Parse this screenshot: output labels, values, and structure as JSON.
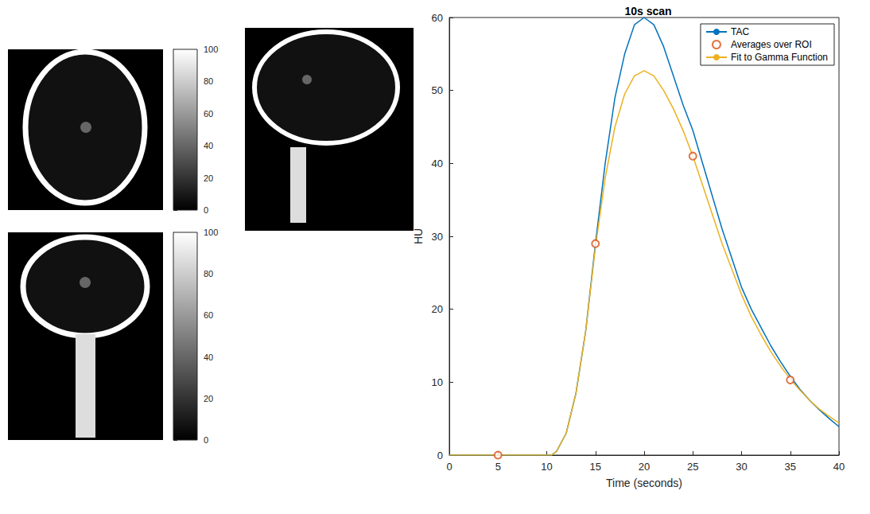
{
  "chart_data": {
    "type": "line",
    "title": "10s scan",
    "x_label": "Time (seconds)",
    "y_label": "HU",
    "xlim": [
      0,
      40
    ],
    "xticks": [
      0,
      5,
      10,
      15,
      20,
      25,
      30,
      35,
      40
    ],
    "ylim": [
      0,
      60
    ],
    "yticks": [
      0,
      10,
      20,
      30,
      40,
      50,
      60
    ],
    "grid": false,
    "legend": "upper right",
    "series": [
      {
        "name": "TAC",
        "type": "line",
        "color": "#0072bd",
        "x": [
          0,
          10,
          10.5,
          11,
          12,
          13,
          14,
          15,
          16,
          17,
          18,
          19,
          20,
          21,
          22,
          23,
          24,
          25,
          26,
          27,
          28,
          29,
          30,
          31,
          32,
          33,
          34,
          35,
          36,
          37,
          38,
          39,
          40
        ],
        "values": [
          0,
          0,
          0,
          0.5,
          3,
          8.5,
          17,
          29,
          40,
          49,
          55,
          59,
          60,
          59,
          56,
          52,
          48,
          44.5,
          40,
          35.5,
          31,
          27,
          23,
          20,
          17.5,
          15,
          12.8,
          10.8,
          9,
          7.5,
          6.2,
          5,
          3.9
        ]
      },
      {
        "name": "Averages over ROI",
        "type": "scatter",
        "marker": "circle",
        "color": "#d95319",
        "x": [
          5,
          15,
          25,
          35
        ],
        "values": [
          0,
          29,
          41,
          10.3
        ]
      },
      {
        "name": "Fit to Gamma Function",
        "type": "line",
        "color": "#edb120",
        "x": [
          0,
          10,
          10.5,
          11,
          12,
          13,
          14,
          15,
          16,
          17,
          18,
          19,
          20,
          21,
          22,
          23,
          24,
          25,
          26,
          27,
          28,
          29,
          30,
          31,
          32,
          33,
          34,
          35,
          36,
          37,
          38,
          39,
          40
        ],
        "values": [
          0,
          0,
          0,
          0.5,
          3,
          8.5,
          17,
          28.5,
          38,
          45,
          49.5,
          52,
          52.7,
          52,
          50,
          47.5,
          44.5,
          41,
          37,
          33,
          29,
          25.5,
          22,
          19,
          16.5,
          14.2,
          12.2,
          10.4,
          8.9,
          7.5,
          6.3,
          5.3,
          4.4
        ]
      }
    ]
  },
  "colorbars": [
    {
      "range": [
        0,
        100
      ],
      "ticks": [
        0,
        20,
        40,
        60,
        80,
        100
      ]
    },
    {
      "range": [
        0,
        100
      ],
      "ticks": [
        0,
        20,
        40,
        60,
        80,
        100
      ]
    }
  ]
}
